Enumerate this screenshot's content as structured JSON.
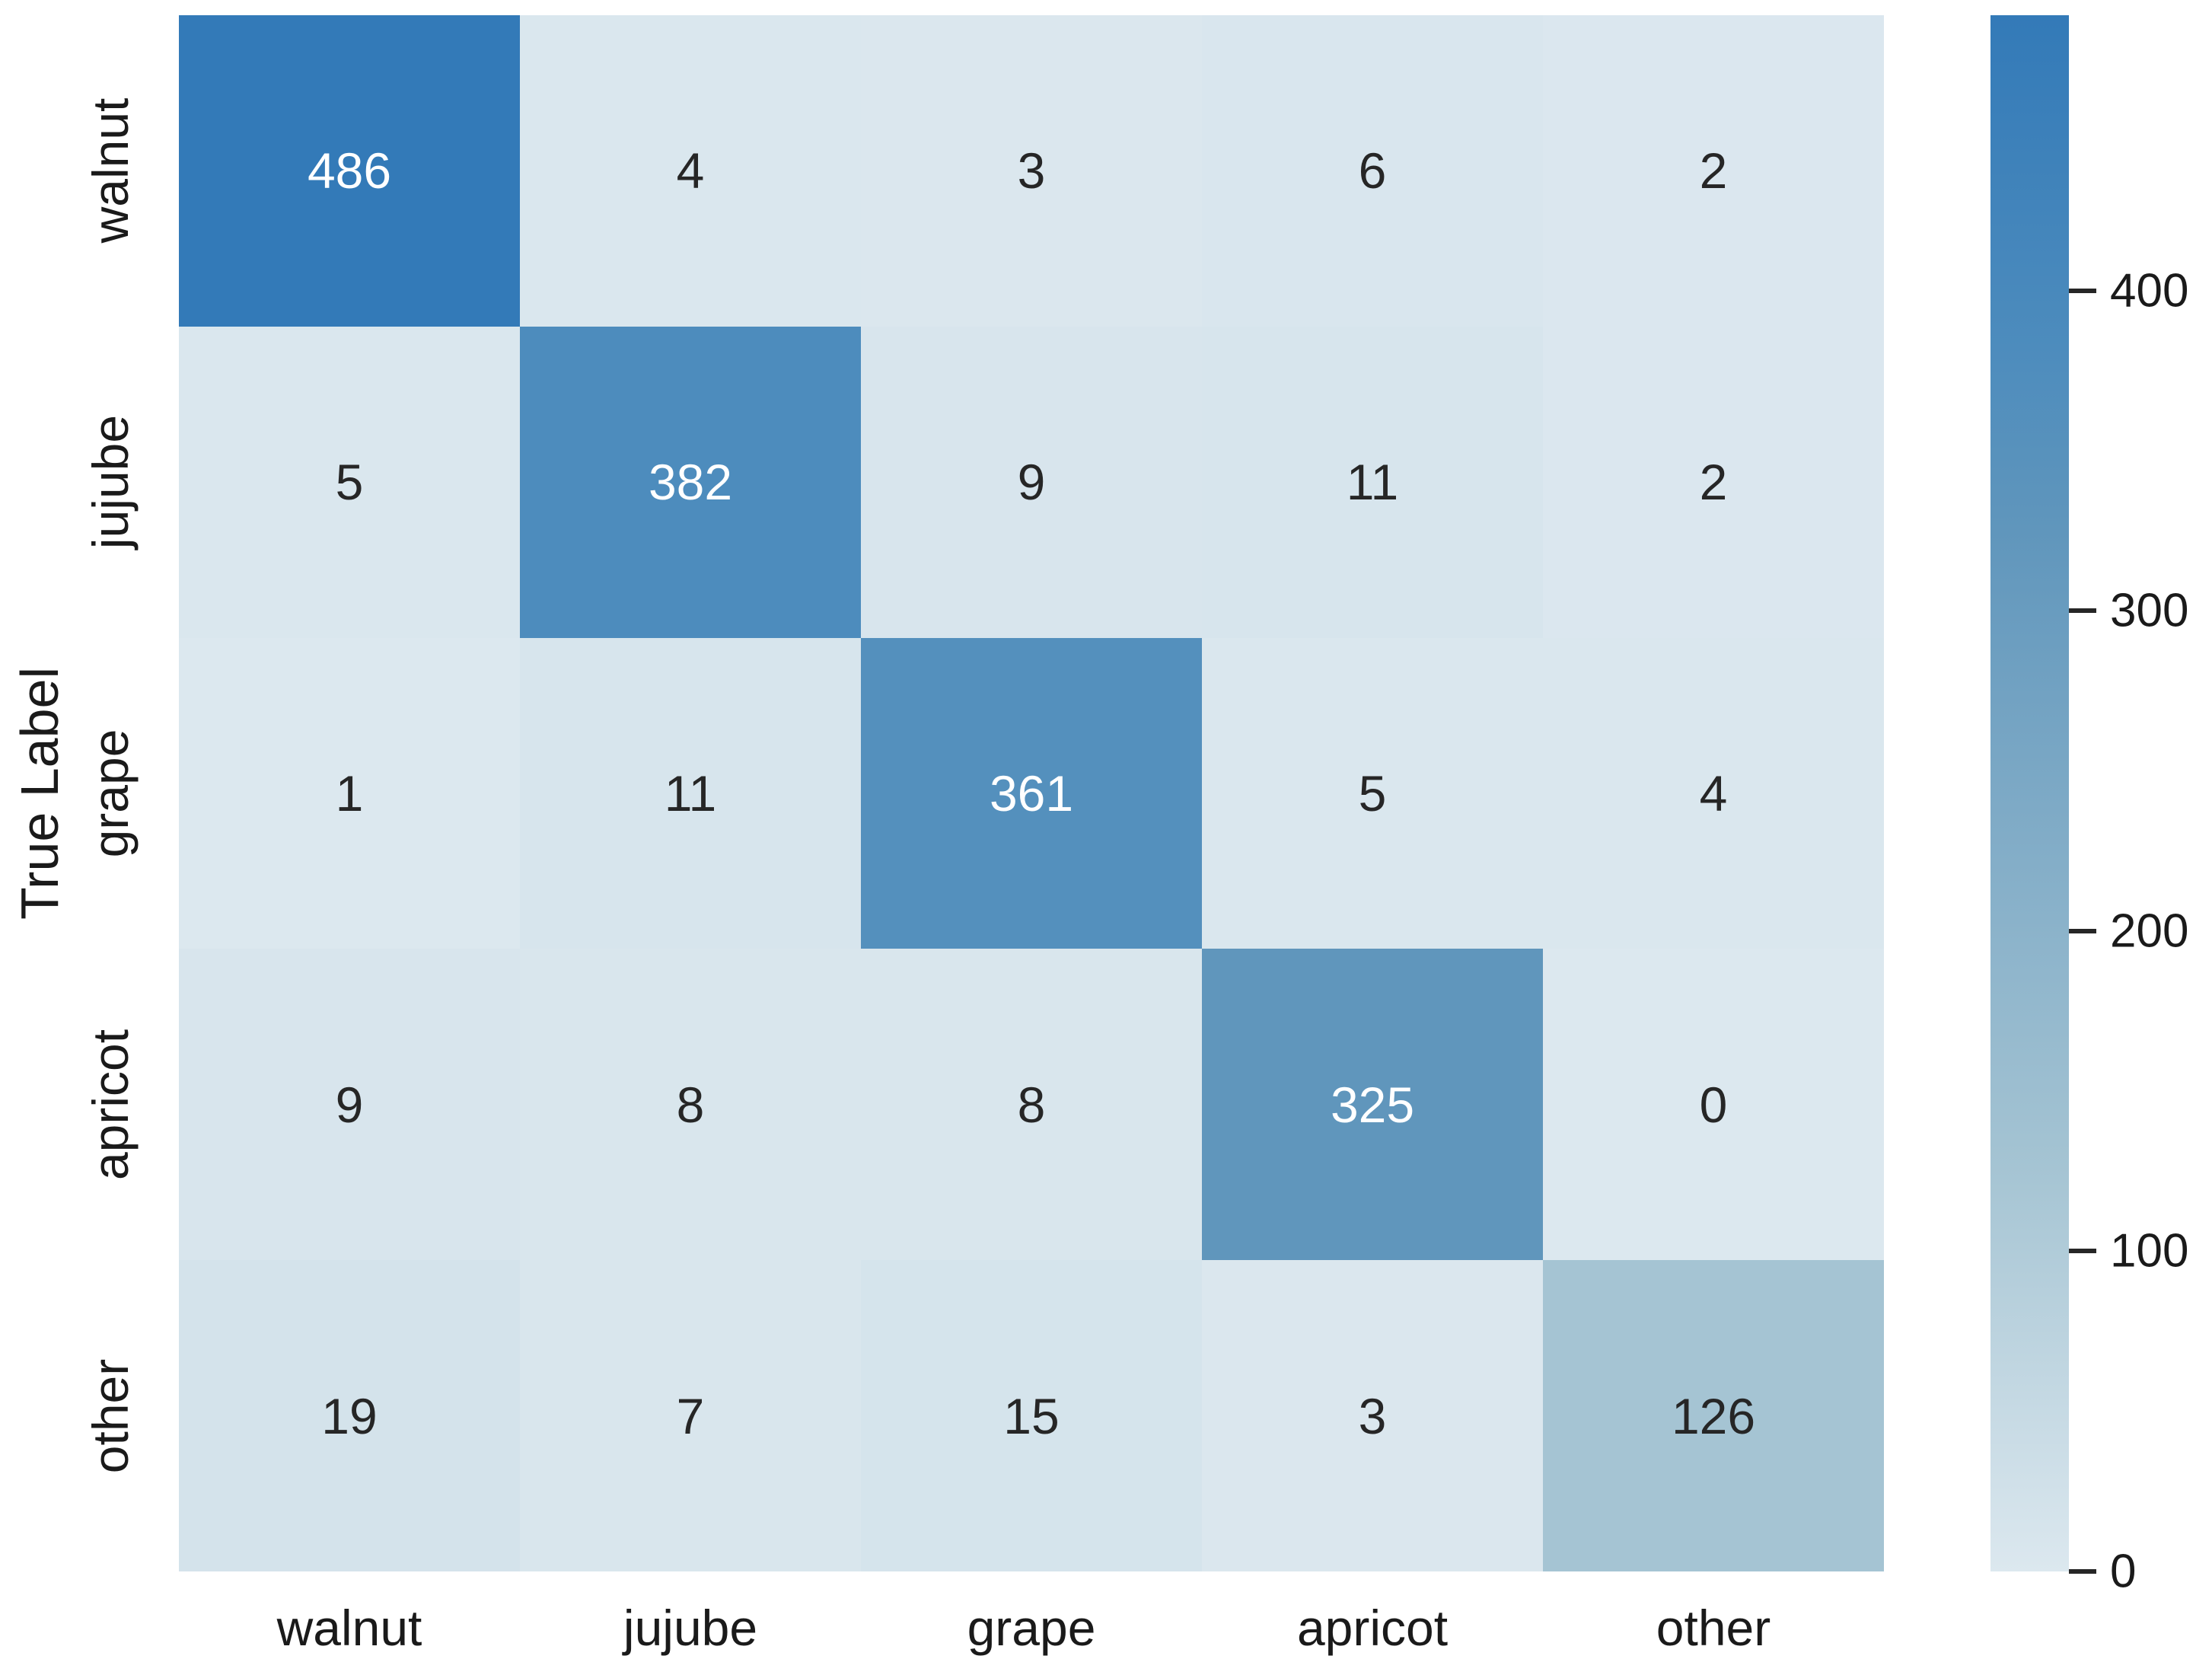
{
  "chart_data": {
    "type": "heatmap",
    "title": "",
    "xlabel": "",
    "ylabel": "True Label",
    "x_categories": [
      "walnut",
      "jujube",
      "grape",
      "apricot",
      "other"
    ],
    "y_categories": [
      "walnut",
      "jujube",
      "grape",
      "apricot",
      "other"
    ],
    "matrix": [
      [
        486,
        4,
        3,
        6,
        2
      ],
      [
        5,
        382,
        9,
        11,
        2
      ],
      [
        1,
        11,
        361,
        5,
        4
      ],
      [
        9,
        8,
        8,
        325,
        0
      ],
      [
        19,
        7,
        15,
        3,
        126
      ]
    ],
    "vmin": 0,
    "vmax": 486,
    "colorbar_ticks": [
      0,
      100,
      200,
      300,
      400
    ],
    "colormap_anchors": [
      {
        "v": 0,
        "c": "#dce8ef"
      },
      {
        "v": 126,
        "c": "#a5c4d3"
      },
      {
        "v": 325,
        "c": "#6096bc"
      },
      {
        "v": 382,
        "c": "#4d8cbd"
      },
      {
        "v": 486,
        "c": "#337ab8"
      }
    ],
    "cell_text_color_dark": "#262626",
    "cell_text_color_light": "#ffffff",
    "grid": false,
    "legend_position": "right-colorbar"
  }
}
